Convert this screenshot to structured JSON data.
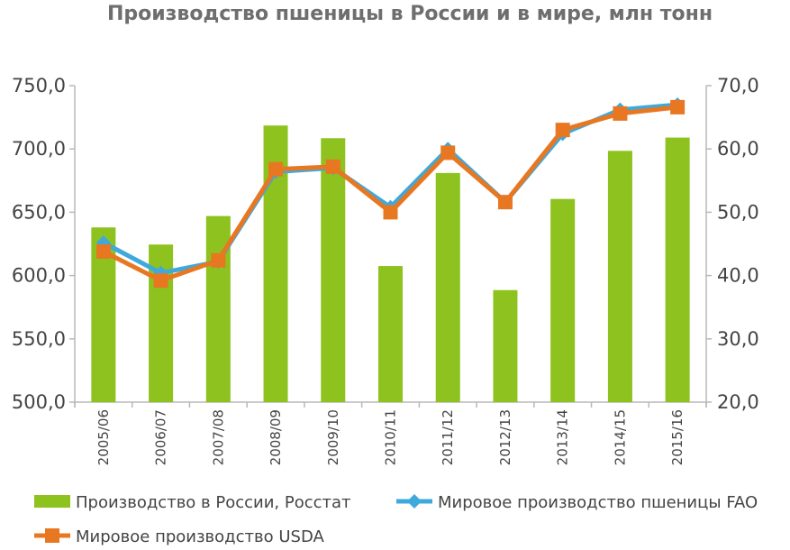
{
  "chart_data": {
    "type": "bar",
    "title": "Производство пшеницы в России и в мире, млн тонн",
    "categories": [
      "2005/06",
      "2006/07",
      "2007/08",
      "2008/09",
      "2009/10",
      "2010/11",
      "2011/12",
      "2012/13",
      "2013/14",
      "2014/15",
      "2015/16"
    ],
    "series": [
      {
        "name": "Производство в России, Росстат",
        "type": "bar",
        "axis": "right",
        "color": "#8dc21f",
        "values": [
          47.6,
          44.9,
          49.4,
          63.7,
          61.7,
          41.5,
          56.2,
          37.7,
          52.1,
          59.7,
          61.8
        ]
      },
      {
        "name": "Мировое производство пшеницы FAO",
        "type": "line",
        "axis": "left",
        "color": "#3fa9dc",
        "marker": "diamond",
        "values": [
          626,
          602,
          611,
          682,
          685,
          654,
          700,
          658,
          712,
          731,
          735
        ]
      },
      {
        "name": "Мировое производство USDA",
        "type": "line",
        "axis": "left",
        "color": "#e87722",
        "marker": "square",
        "values": [
          619,
          596,
          612,
          684,
          686,
          650,
          697,
          658,
          715,
          728,
          733
        ]
      }
    ],
    "y_left": {
      "ylim": [
        500,
        750
      ],
      "ticks": [
        "500,0",
        "550,0",
        "600,0",
        "650,0",
        "700,0",
        "750,0"
      ]
    },
    "y_right": {
      "ylim": [
        20,
        70
      ],
      "ticks": [
        "20,0",
        "30,0",
        "40,0",
        "50,0",
        "60,0",
        "70,0"
      ]
    },
    "grid": false,
    "legend_position": "bottom"
  }
}
